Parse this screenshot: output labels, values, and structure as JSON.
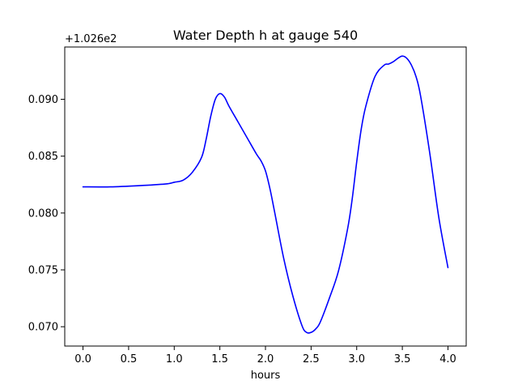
{
  "chart_data": {
    "type": "line",
    "title": "Water Depth h at gauge 540",
    "xlabel": "hours",
    "ylabel": "",
    "y_offset_label": "+1.026e2",
    "xlim": [
      -0.2,
      4.2
    ],
    "ylim": [
      0.0683,
      0.0946
    ],
    "x_ticks": [
      0.0,
      0.5,
      1.0,
      1.5,
      2.0,
      2.5,
      3.0,
      3.5,
      4.0
    ],
    "x_tick_labels": [
      "0.0",
      "0.5",
      "1.0",
      "1.5",
      "2.0",
      "2.5",
      "3.0",
      "3.5",
      "4.0"
    ],
    "y_ticks": [
      0.07,
      0.075,
      0.08,
      0.085,
      0.09
    ],
    "y_tick_labels": [
      "0.070",
      "0.075",
      "0.080",
      "0.085",
      "0.090"
    ],
    "grid": false,
    "series": [
      {
        "color": "#0000ff",
        "x": [
          0.0,
          0.3,
          0.6,
          0.9,
          1.0,
          1.1,
          1.2,
          1.3,
          1.35,
          1.4,
          1.45,
          1.5,
          1.55,
          1.6,
          1.7,
          1.8,
          1.9,
          1.95,
          2.0,
          2.05,
          2.1,
          2.2,
          2.3,
          2.4,
          2.45,
          2.5,
          2.55,
          2.6,
          2.7,
          2.8,
          2.9,
          2.95,
          3.0,
          3.05,
          3.1,
          3.2,
          3.3,
          3.35,
          3.4,
          3.45,
          3.5,
          3.55,
          3.6,
          3.65,
          3.7,
          3.8,
          3.9,
          4.0
        ],
        "y": [
          0.0823,
          0.0823,
          0.0824,
          0.08255,
          0.0827,
          0.0829,
          0.0836,
          0.0849,
          0.0865,
          0.0885,
          0.09,
          0.0905,
          0.0902,
          0.0894,
          0.088,
          0.0866,
          0.0852,
          0.0846,
          0.0837,
          0.0821,
          0.0801,
          0.076,
          0.0727,
          0.0701,
          0.0695,
          0.0695,
          0.0698,
          0.0704,
          0.0725,
          0.0749,
          0.0786,
          0.0812,
          0.0845,
          0.0874,
          0.0894,
          0.092,
          0.093,
          0.0931,
          0.0933,
          0.0936,
          0.0938,
          0.0936,
          0.093,
          0.092,
          0.0903,
          0.0853,
          0.0796,
          0.0752
        ]
      }
    ]
  }
}
